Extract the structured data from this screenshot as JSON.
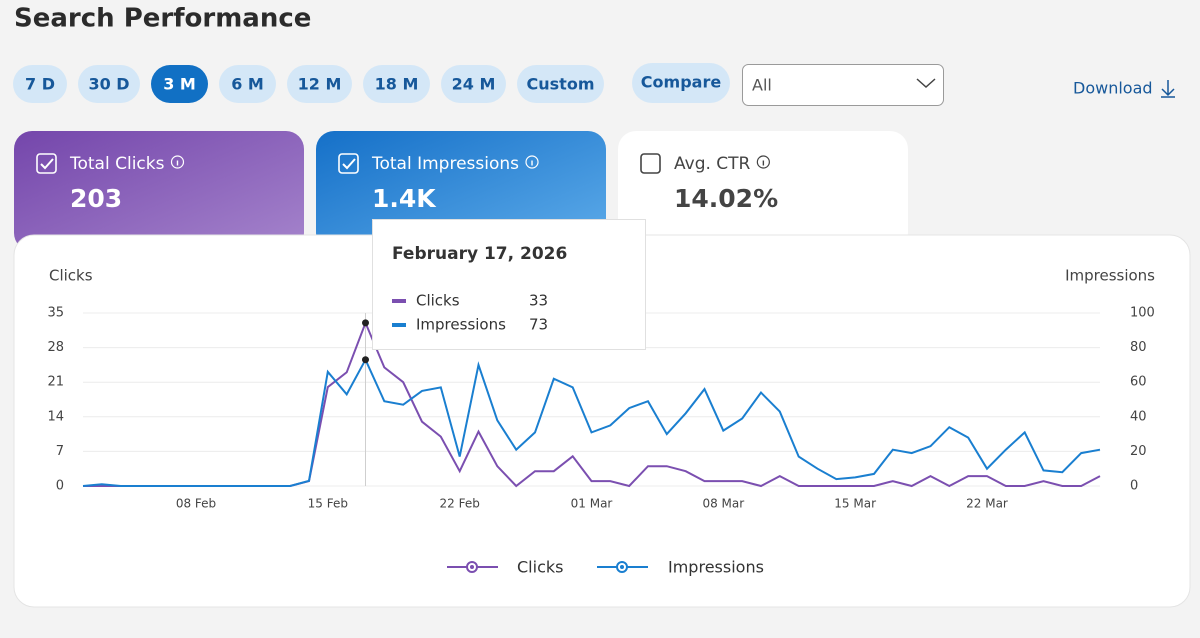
{
  "header": {
    "title": "Search Performance"
  },
  "ranges": [
    "7 D",
    "30 D",
    "3 M",
    "6 M",
    "12 M",
    "18 M",
    "24 M",
    "Custom"
  ],
  "selected_range": 2,
  "compare": "Compare",
  "filter": "All",
  "download": "Download",
  "cards": [
    {
      "label": "Total Clicks",
      "value": "203",
      "checked": true
    },
    {
      "label": "Total Impressions",
      "value": "1.4K",
      "checked": true
    },
    {
      "label": "Avg. CTR",
      "value": "14.02%",
      "checked": false
    }
  ],
  "chart_data": {
    "type": "line",
    "y_label": "Clicks",
    "y2_label": "Impressions",
    "categories": [
      null,
      null,
      null,
      null,
      null,
      null,
      "08 Feb",
      null,
      null,
      null,
      null,
      null,
      null,
      "15 Feb",
      null,
      null,
      null,
      null,
      null,
      null,
      "22 Feb",
      null,
      null,
      null,
      null,
      null,
      null,
      "01 Mar",
      null,
      null,
      null,
      null,
      null,
      null,
      "08 Mar",
      null,
      null,
      null,
      null,
      null,
      null,
      "15 Mar",
      null,
      null,
      null,
      null,
      null,
      null,
      "22 Mar",
      null,
      null,
      null,
      null,
      null,
      null
    ],
    "series": [
      {
        "name": "Clicks",
        "color": "#7b4fb0",
        "axis": "y",
        "values": [
          0,
          0,
          0,
          0,
          0,
          0,
          0,
          0,
          0,
          0,
          0,
          0,
          1,
          20,
          23,
          33,
          24,
          21,
          13,
          10,
          3,
          11,
          4,
          0,
          3,
          3,
          6,
          1,
          1,
          0,
          4,
          4,
          3,
          1,
          1,
          1,
          0,
          2,
          0,
          0,
          0,
          0,
          0,
          1,
          0,
          2,
          0,
          2,
          2,
          0,
          0,
          1,
          0,
          0,
          2
        ]
      },
      {
        "name": "Impressions",
        "color": "#1a7fd0",
        "axis": "y2",
        "values": [
          0,
          1,
          0,
          0,
          0,
          0,
          0,
          0,
          0,
          0,
          0,
          0,
          3,
          66,
          53,
          73,
          49,
          47,
          55,
          57,
          17,
          70,
          38,
          21,
          31,
          62,
          57,
          31,
          35,
          45,
          49,
          30,
          42,
          56,
          32,
          39,
          54,
          43,
          17,
          10,
          4,
          5,
          7,
          21,
          19,
          23,
          34,
          28,
          10,
          21,
          31,
          9,
          8,
          19,
          21
        ]
      }
    ],
    "ylim": [
      0,
      35
    ],
    "yticks": [
      0,
      7,
      14,
      21,
      28,
      35
    ],
    "y2lim": [
      0,
      100
    ],
    "y2ticks": [
      0,
      20,
      40,
      60,
      80,
      100
    ],
    "grid": true,
    "tooltip": {
      "title": "February 17, 2026",
      "index": 15
    }
  }
}
